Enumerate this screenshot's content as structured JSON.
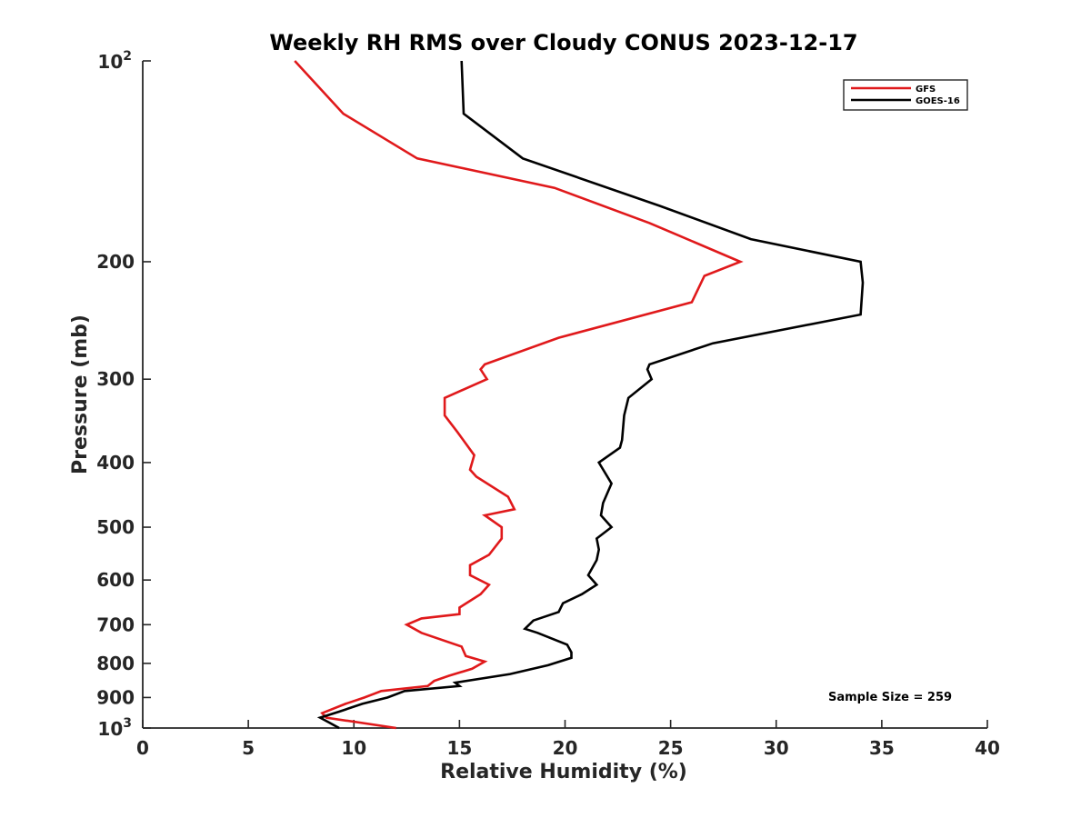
{
  "chart_data": {
    "type": "line",
    "title": "Weekly RH RMS over Cloudy CONUS 2023-12-17",
    "xlabel": "Relative Humidity (%)",
    "ylabel": "Pressure (mb)",
    "xlim": [
      0,
      40
    ],
    "ylim": [
      100,
      1000
    ],
    "y_scale": "log",
    "y_reversed": true,
    "grid": false,
    "legend_position": "top-right",
    "x_ticks": [
      "0",
      "5",
      "10",
      "15",
      "20",
      "25",
      "30",
      "35",
      "40"
    ],
    "x_tick_values": [
      0,
      5,
      10,
      15,
      20,
      25,
      30,
      35,
      40
    ],
    "y_ticks": [
      {
        "value": 100,
        "base": "10",
        "exp": "2"
      },
      {
        "value": 200,
        "label": "200"
      },
      {
        "value": 300,
        "label": "300"
      },
      {
        "value": 400,
        "label": "400"
      },
      {
        "value": 500,
        "label": "500"
      },
      {
        "value": 600,
        "label": "600"
      },
      {
        "value": 700,
        "label": "700"
      },
      {
        "value": 800,
        "label": "800"
      },
      {
        "value": 900,
        "label": "900"
      },
      {
        "value": 1000,
        "base": "10",
        "exp": "3"
      }
    ],
    "annotation": "Sample Size = 259",
    "series": [
      {
        "name": "GFS",
        "color": "#e0191b",
        "points": [
          [
            7.2,
            100
          ],
          [
            9.5,
            120
          ],
          [
            13.0,
            140
          ],
          [
            19.5,
            155
          ],
          [
            24.0,
            175
          ],
          [
            28.3,
            200
          ],
          [
            26.6,
            210
          ],
          [
            26.0,
            230
          ],
          [
            19.7,
            260
          ],
          [
            16.2,
            285
          ],
          [
            16.0,
            290
          ],
          [
            16.3,
            300
          ],
          [
            14.3,
            320
          ],
          [
            14.3,
            340
          ],
          [
            14.9,
            360
          ],
          [
            15.7,
            390
          ],
          [
            15.5,
            410
          ],
          [
            15.8,
            420
          ],
          [
            17.3,
            450
          ],
          [
            17.6,
            470
          ],
          [
            16.2,
            480
          ],
          [
            17.0,
            500
          ],
          [
            17.0,
            520
          ],
          [
            16.4,
            550
          ],
          [
            15.5,
            570
          ],
          [
            15.5,
            590
          ],
          [
            16.4,
            610
          ],
          [
            16.0,
            630
          ],
          [
            15.0,
            660
          ],
          [
            15.0,
            675
          ],
          [
            13.2,
            685
          ],
          [
            12.5,
            700
          ],
          [
            13.2,
            720
          ],
          [
            15.1,
            755
          ],
          [
            15.3,
            780
          ],
          [
            16.2,
            795
          ],
          [
            15.6,
            815
          ],
          [
            14.5,
            835
          ],
          [
            13.8,
            850
          ],
          [
            13.5,
            865
          ],
          [
            11.3,
            880
          ],
          [
            10.5,
            900
          ],
          [
            9.6,
            920
          ],
          [
            8.5,
            950
          ],
          [
            8.7,
            965
          ],
          [
            12.0,
            1000
          ]
        ]
      },
      {
        "name": "GOES-16",
        "color": "#000000",
        "points": [
          [
            15.1,
            100
          ],
          [
            15.2,
            120
          ],
          [
            18.0,
            140
          ],
          [
            24.5,
            165
          ],
          [
            28.8,
            185
          ],
          [
            34.0,
            200
          ],
          [
            34.1,
            215
          ],
          [
            34.0,
            240
          ],
          [
            27.0,
            265
          ],
          [
            24.0,
            285
          ],
          [
            23.9,
            290
          ],
          [
            24.1,
            300
          ],
          [
            23.0,
            320
          ],
          [
            22.8,
            340
          ],
          [
            22.7,
            370
          ],
          [
            22.6,
            380
          ],
          [
            21.6,
            400
          ],
          [
            22.2,
            430
          ],
          [
            21.8,
            460
          ],
          [
            21.7,
            480
          ],
          [
            22.2,
            500
          ],
          [
            21.5,
            520
          ],
          [
            21.6,
            540
          ],
          [
            21.5,
            560
          ],
          [
            21.1,
            590
          ],
          [
            21.5,
            610
          ],
          [
            20.8,
            630
          ],
          [
            19.9,
            650
          ],
          [
            19.7,
            670
          ],
          [
            18.5,
            690
          ],
          [
            18.1,
            710
          ],
          [
            18.7,
            720
          ],
          [
            20.1,
            750
          ],
          [
            20.3,
            770
          ],
          [
            20.3,
            785
          ],
          [
            19.2,
            805
          ],
          [
            17.4,
            830
          ],
          [
            14.8,
            855
          ],
          [
            15.0,
            865
          ],
          [
            12.4,
            880
          ],
          [
            11.6,
            900
          ],
          [
            10.4,
            920
          ],
          [
            9.3,
            945
          ],
          [
            8.4,
            965
          ],
          [
            8.8,
            980
          ],
          [
            9.3,
            1000
          ]
        ]
      }
    ]
  }
}
